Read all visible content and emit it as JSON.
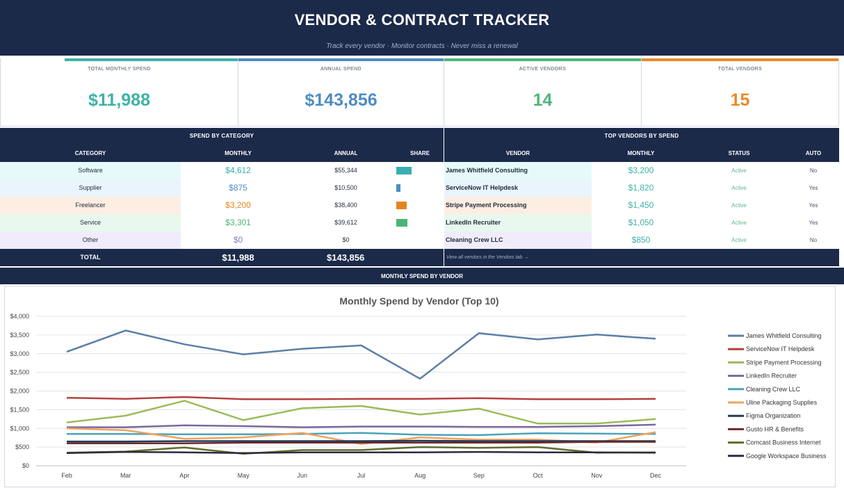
{
  "header": {
    "title": "VENDOR & CONTRACT TRACKER",
    "subtitle": "Track every vendor · Monitor contracts · Never miss a renewal"
  },
  "kpis": [
    {
      "label": "TOTAL MONTHLY SPEND",
      "value": "$11,988",
      "color": "#3fb1a7"
    },
    {
      "label": "ANNUAL SPEND",
      "value": "$143,856",
      "color": "#4f8cc2"
    },
    {
      "label": "ACTIVE VENDORS",
      "value": "14",
      "color": "#4fb47c"
    },
    {
      "label": "TOTAL VENDORS",
      "value": "15",
      "color": "#e9892c"
    }
  ],
  "spend_by_category": {
    "title": "SPEND BY CATEGORY",
    "columns": [
      "CATEGORY",
      "MONTHLY",
      "ANNUAL",
      "SHARE"
    ],
    "rows": [
      {
        "category": "Software",
        "monthly": "$4,612",
        "annual": "$55,344",
        "share_pct": 38.5,
        "color": "#3aaeb0",
        "shade": "#e6fbf9"
      },
      {
        "category": "Supplier",
        "monthly": "$875",
        "annual": "$10,500",
        "share_pct": 7.3,
        "color": "#4c8ec7",
        "shade": "#eaf4fd"
      },
      {
        "category": "Freelancer",
        "monthly": "$3,200",
        "annual": "$38,400",
        "share_pct": 26.7,
        "color": "#e6841f",
        "shade": "#fdeee3"
      },
      {
        "category": "Service",
        "monthly": "$3,301",
        "annual": "$39,612",
        "share_pct": 27.5,
        "color": "#4bb57a",
        "shade": "#e8f8ee"
      },
      {
        "category": "Other",
        "monthly": "$0",
        "annual": "$0",
        "share_pct": 0,
        "color": "#8a7dc2",
        "shade": "#f1ecfb"
      }
    ],
    "total": {
      "label": "TOTAL",
      "monthly": "$11,988",
      "annual": "$143,856"
    }
  },
  "top_vendors": {
    "title": "TOP VENDORS BY SPEND",
    "columns": [
      "VENDOR",
      "MONTHLY",
      "STATUS",
      "AUTO"
    ],
    "rows": [
      {
        "vendor": "James Whitfield Consulting",
        "monthly": "$3,200",
        "status": "Active",
        "auto": "No",
        "shade": "#e6fbf9"
      },
      {
        "vendor": "ServiceNow IT Helpdesk",
        "monthly": "$1,820",
        "status": "Active",
        "auto": "Yes",
        "shade": "#eaf4fd"
      },
      {
        "vendor": "Stripe Payment Processing",
        "monthly": "$1,450",
        "status": "Active",
        "auto": "Yes",
        "shade": "#fdeee3"
      },
      {
        "vendor": "LinkedIn Recruiter",
        "monthly": "$1,050",
        "status": "Active",
        "auto": "Yes",
        "shade": "#e8f8ee"
      },
      {
        "vendor": "Cleaning Crew LLC",
        "monthly": "$850",
        "status": "Active",
        "auto": "No",
        "shade": "#f1ecfb"
      }
    ],
    "footer_link": "View all vendors in the Vendors tab →"
  },
  "chart_section": {
    "heading": "MONTHLY SPEND BY VENDOR"
  },
  "chart_data": {
    "type": "line",
    "title": "Monthly Spend by Vendor (Top 10)",
    "xlabel": "",
    "ylabel": "",
    "x": [
      "Feb",
      "Mar",
      "Apr",
      "May",
      "Jun",
      "Jul",
      "Aug",
      "Sep",
      "Oct",
      "Nov",
      "Dec"
    ],
    "ylim": [
      0,
      4000
    ],
    "yticks": [
      "$0",
      "$500",
      "$1,000",
      "$1,500",
      "$2,000",
      "$2,500",
      "$3,000",
      "$3,500",
      "$4,000"
    ],
    "legend_position": "right",
    "series": [
      {
        "name": "James Whitfield Consulting",
        "color": "#5b7fa6",
        "values": [
          3050,
          3620,
          3250,
          2980,
          3130,
          3220,
          2330,
          3550,
          3380,
          3510,
          3400
        ]
      },
      {
        "name": "ServiceNow IT Helpdesk",
        "color": "#b5413d",
        "values": [
          1820,
          1790,
          1840,
          1780,
          1780,
          1790,
          1790,
          1810,
          1780,
          1780,
          1790
        ]
      },
      {
        "name": "Stripe Payment Processing",
        "color": "#9bbb59",
        "values": [
          1160,
          1340,
          1740,
          1220,
          1540,
          1600,
          1370,
          1530,
          1130,
          1130,
          1250
        ]
      },
      {
        "name": "LinkedIn Recruiter",
        "color": "#7a689c",
        "values": [
          1030,
          1030,
          1080,
          1060,
          1030,
          1050,
          1050,
          1040,
          1040,
          1060,
          1100
        ]
      },
      {
        "name": "Cleaning Crew LLC",
        "color": "#4ba3b8",
        "values": [
          850,
          850,
          840,
          840,
          850,
          880,
          830,
          820,
          870,
          860,
          850
        ]
      },
      {
        "name": "Uline Packaging Supplies",
        "color": "#f0a35e",
        "values": [
          1000,
          950,
          720,
          760,
          880,
          580,
          760,
          700,
          700,
          620,
          900
        ]
      },
      {
        "name": "Figma Organization",
        "color": "#1f3b5c",
        "values": [
          650,
          650,
          660,
          660,
          660,
          660,
          670,
          660,
          660,
          660,
          660
        ]
      },
      {
        "name": "Gusto HR & Benefits",
        "color": "#6e2a2a",
        "values": [
          600,
          600,
          600,
          620,
          620,
          620,
          620,
          620,
          620,
          640,
          640
        ]
      },
      {
        "name": "Comcast Business Internet",
        "color": "#5f6b2c",
        "values": [
          350,
          380,
          490,
          320,
          420,
          420,
          500,
          480,
          500,
          350,
          360
        ]
      },
      {
        "name": "Google Workspace Business",
        "color": "#2b2b3f",
        "values": [
          340,
          370,
          360,
          340,
          360,
          360,
          360,
          370,
          360,
          360,
          350
        ]
      }
    ]
  }
}
